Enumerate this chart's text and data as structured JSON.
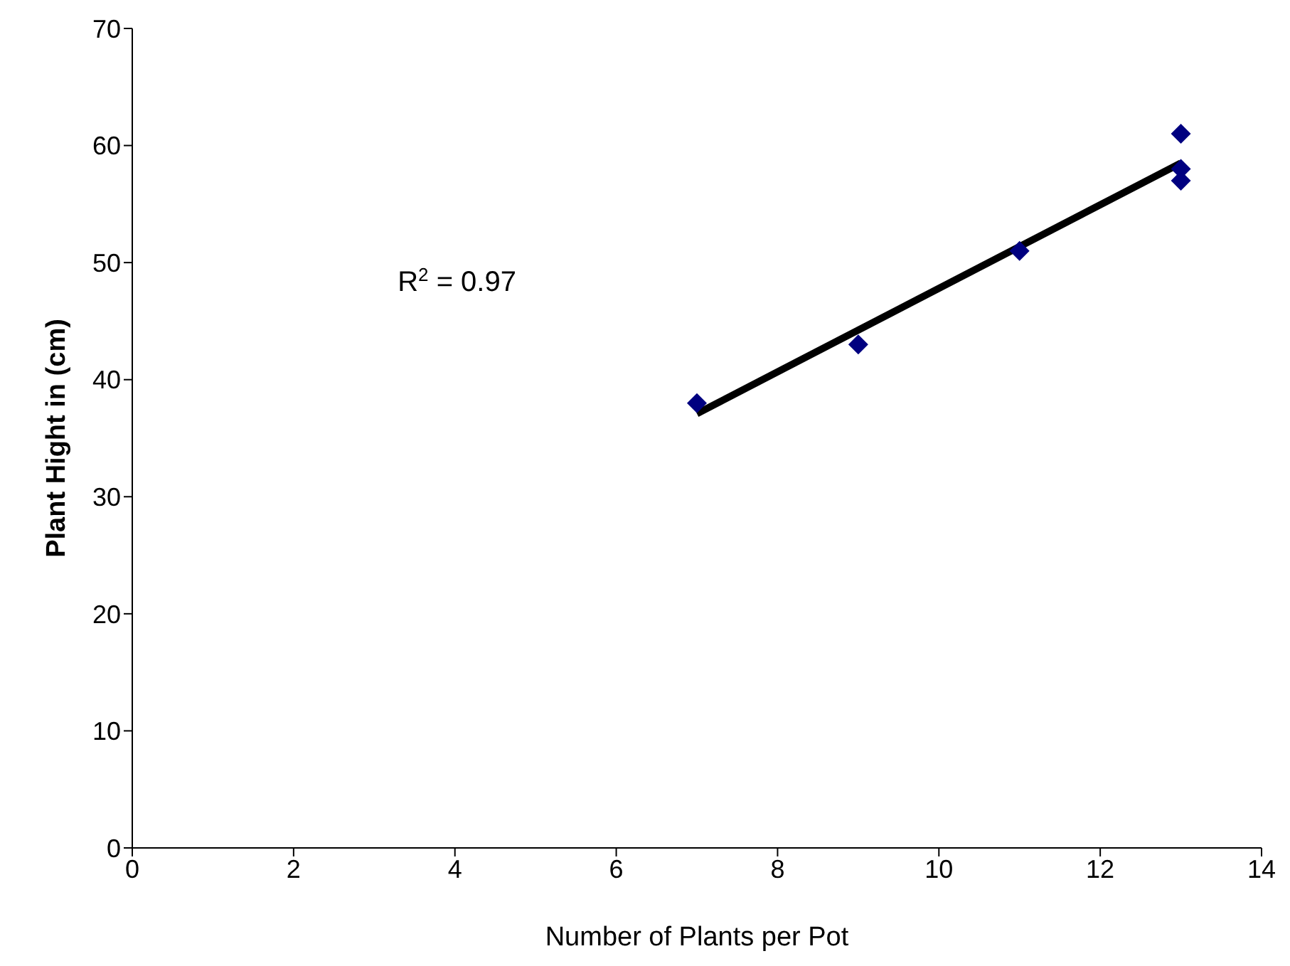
{
  "chart_data": {
    "type": "scatter",
    "xlabel": "Number of Plants per Pot",
    "ylabel": "Plant Hight in (cm)",
    "xlim": [
      0,
      14
    ],
    "xticks": [
      0,
      2,
      4,
      6,
      8,
      10,
      12,
      14
    ],
    "ylim": [
      0,
      70
    ],
    "yticks": [
      0,
      10,
      20,
      30,
      40,
      50,
      60,
      70
    ],
    "grid": false,
    "legend": false,
    "marker": "diamond",
    "annotations": [
      "R$^{2}$ = 0.97"
    ],
    "series": [
      {
        "color": "#000080",
        "x": [
          7,
          9,
          11,
          13,
          13,
          13
        ],
        "values": [
          38,
          43,
          51,
          61,
          58,
          57
        ]
      },
      {
        "type": "line",
        "color": "#000000",
        "x": [
          7,
          13
        ],
        "values": [
          37.1,
          58.5
        ],
        "marker": "none",
        "line_style": "solid"
      }
    ]
  }
}
